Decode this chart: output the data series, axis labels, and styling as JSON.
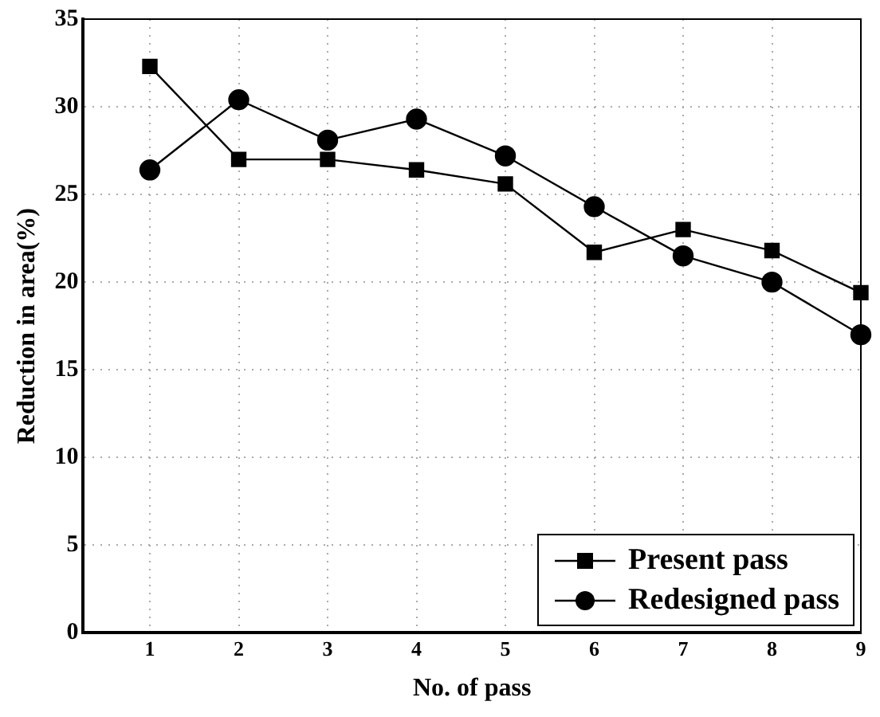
{
  "chart_data": {
    "type": "line",
    "xlabel": "No. of pass",
    "ylabel": "Reduction in area(%)",
    "x": [
      1,
      2,
      3,
      4,
      5,
      6,
      7,
      8,
      9
    ],
    "xlim": [
      0.25,
      9
    ],
    "xticks": [
      1,
      2,
      3,
      4,
      5,
      6,
      7,
      8,
      9
    ],
    "ylim": [
      0,
      35
    ],
    "yticks": [
      0,
      5,
      10,
      15,
      20,
      25,
      30,
      35
    ],
    "grid": true,
    "legend": "bottom right",
    "line_style": "solid",
    "series": [
      {
        "name": "Present pass",
        "color": "#000000",
        "marker": "square",
        "values": [
          32.3,
          27,
          27,
          26.4,
          25.6,
          21.7,
          23,
          21.8,
          19.4
        ]
      },
      {
        "name": "Redesigned pass",
        "color": "#000000",
        "marker": "circle",
        "values": [
          26.4,
          30.4,
          28.1,
          29.3,
          27.2,
          24.3,
          21.5,
          20,
          17
        ]
      }
    ]
  }
}
